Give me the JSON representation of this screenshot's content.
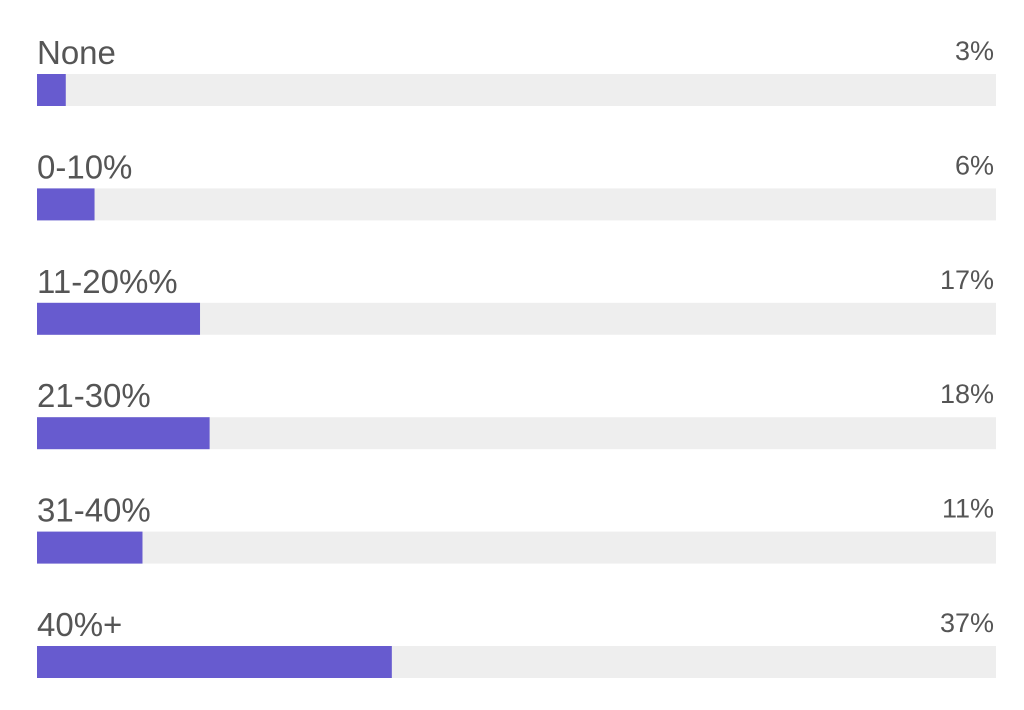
{
  "chart_data": {
    "type": "bar",
    "orientation": "horizontal",
    "categories": [
      "None",
      "0-10%",
      "11-20%%",
      "21-30%",
      "31-40%",
      "40%+"
    ],
    "values": [
      3,
      6,
      17,
      18,
      11,
      37
    ],
    "value_labels": [
      "3%",
      "6%",
      "17%",
      "18%",
      "11%",
      "37%"
    ],
    "color": "#675bcf",
    "track_color": "#eeeeee",
    "xlim": [
      0,
      100
    ]
  }
}
